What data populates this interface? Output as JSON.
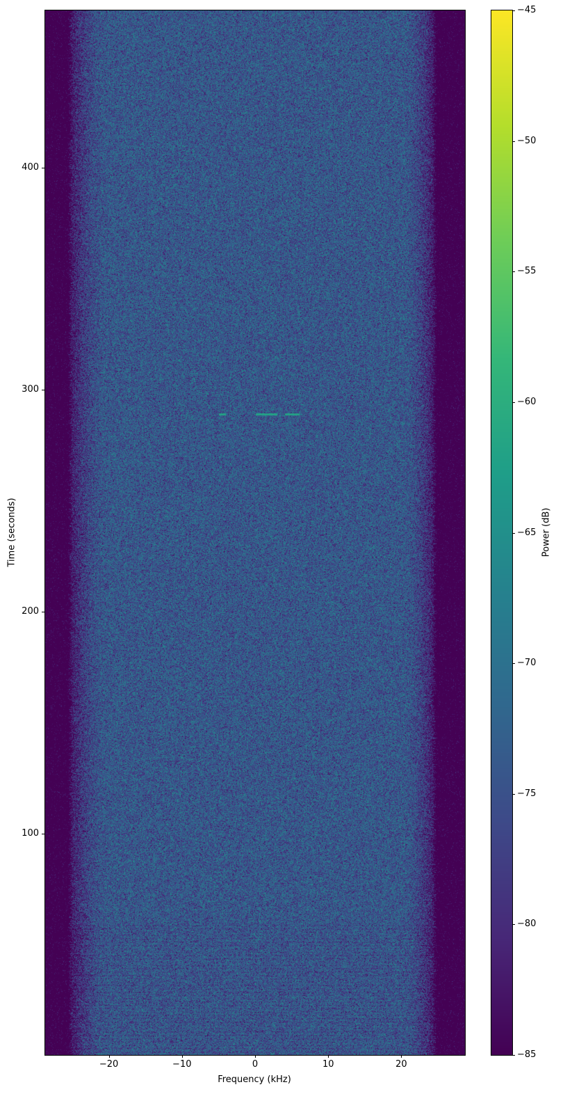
{
  "chart_data": {
    "type": "heatmap",
    "title": "",
    "xlabel": "Frequency (kHz)",
    "ylabel": "Time (seconds)",
    "xlim": [
      -28.7,
      28.7
    ],
    "ylim": [
      0.3,
      470.8
    ],
    "xticks": [
      -20,
      -10,
      0,
      10,
      20
    ],
    "xtick_labels": [
      "−20",
      "−10",
      "0",
      "10",
      "20"
    ],
    "yticks": [
      100,
      200,
      300,
      400
    ],
    "ytick_labels": [
      "100",
      "200",
      "300",
      "400"
    ],
    "colorbar": {
      "label": "Power (dB)",
      "colormap": "viridis",
      "clim": [
        -85,
        -45
      ],
      "ticks": [
        -45,
        -50,
        -55,
        -60,
        -65,
        -70,
        -75,
        -80,
        -85
      ],
      "tick_labels": [
        "−45",
        "−50",
        "−55",
        "−60",
        "−65",
        "−70",
        "−75",
        "−80",
        "−85"
      ]
    },
    "content": {
      "noise_floor_db": -85,
      "in_band_mean_db": -74,
      "passband_khz": [
        -20,
        20
      ],
      "rolloff_edge_khz": [
        -25.3,
        24.5
      ],
      "weak_tone_time_s": 289
    },
    "grid": false
  }
}
